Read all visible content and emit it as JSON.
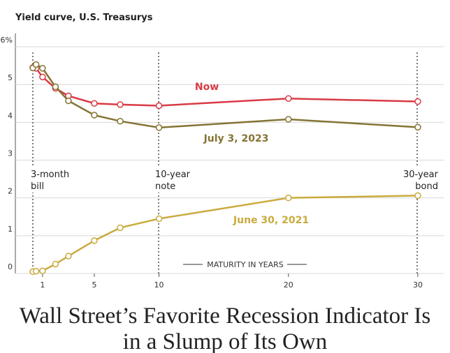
{
  "chart_data": {
    "type": "line",
    "title": "Yield curve, U.S. Treasurys",
    "headline": "Wall Street’s Favorite Recession Indicator Is in a Slump of Its Own",
    "x_label": "MATURITY IN YEARS",
    "annotations": [
      "3-month bill",
      "10-year note",
      "30-year bond"
    ],
    "x": [
      0.25,
      0.5,
      1,
      2,
      3,
      5,
      7,
      10,
      20,
      30
    ],
    "series": [
      {
        "name": "Now",
        "color": "#d93a45",
        "values": [
          5.45,
          5.43,
          5.2,
          4.9,
          4.7,
          4.5,
          4.47,
          4.44,
          4.63,
          4.55
        ]
      },
      {
        "name": "July 3, 2023",
        "color": "#857434",
        "values": [
          5.44,
          5.53,
          5.43,
          4.94,
          4.57,
          4.19,
          4.03,
          3.86,
          4.08,
          3.87
        ]
      },
      {
        "name": "June 30, 2021",
        "color": "#c9ab3d",
        "values": [
          0.05,
          0.06,
          0.07,
          0.25,
          0.46,
          0.87,
          1.21,
          1.45,
          2.0,
          2.06
        ]
      }
    ],
    "xlim": [
      -1.1,
      32
    ],
    "ylim": [
      0,
      6
    ],
    "xticks": [
      1,
      5,
      10,
      20,
      30
    ],
    "yticks": [
      0,
      1,
      2,
      3,
      4,
      5,
      {
        "value": 6,
        "label": "6%"
      }
    ],
    "grid": true
  }
}
